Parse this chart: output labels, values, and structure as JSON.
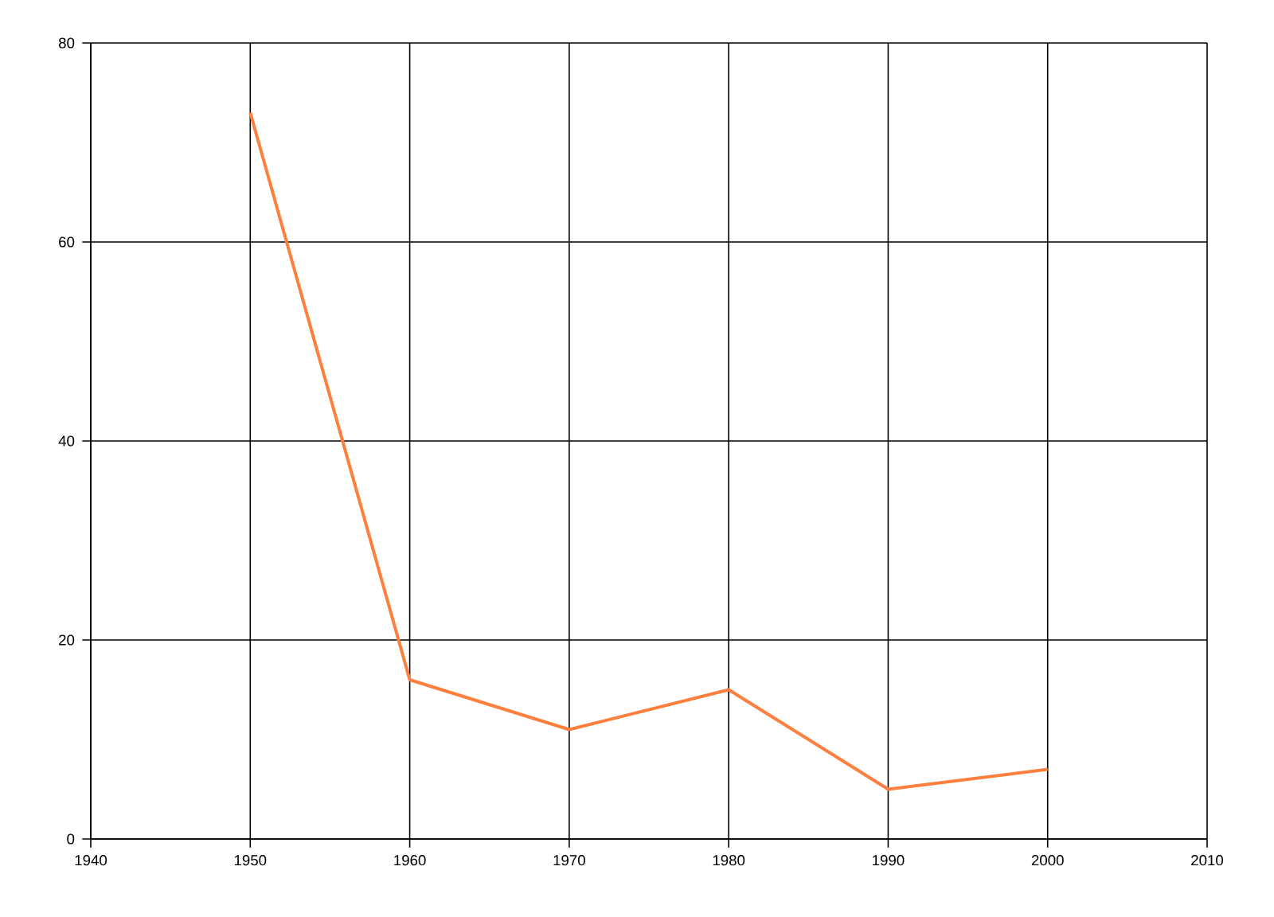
{
  "chart_data": {
    "type": "line",
    "x": [
      1950,
      1960,
      1970,
      1980,
      1990,
      2000
    ],
    "series": [
      {
        "color": "#ff7f3f",
        "values": [
          73,
          16,
          11,
          15,
          5,
          7
        ]
      }
    ],
    "xlim": [
      1940,
      2010
    ],
    "xticks": [
      1940,
      1950,
      1960,
      1970,
      1980,
      1990,
      2000,
      2010
    ],
    "ylim": [
      0,
      80
    ],
    "yticks": [
      0,
      20,
      40,
      60,
      80
    ],
    "grid": true,
    "marker": "none",
    "line_style": "solid"
  }
}
